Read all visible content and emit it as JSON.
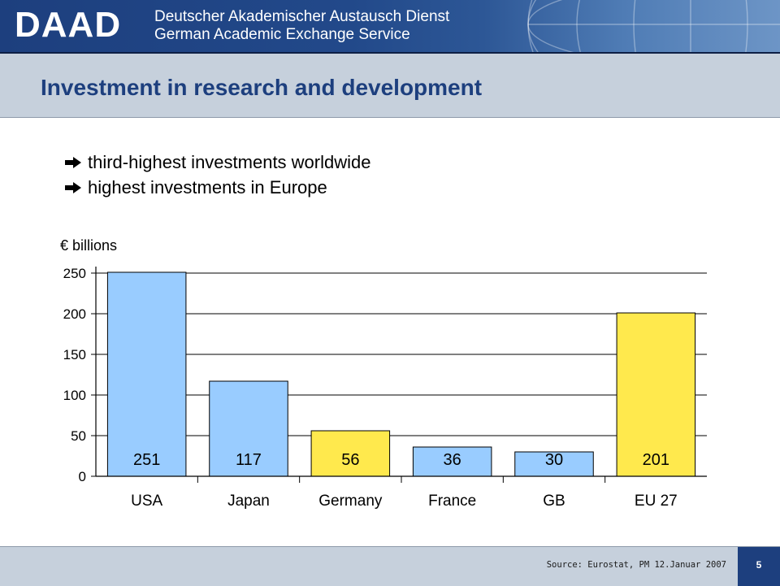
{
  "header": {
    "logo": "DAAD",
    "org_line1": "Deutscher Akademischer Austausch Dienst",
    "org_line2": "German Academic Exchange Service"
  },
  "slide": {
    "title": "Investment in research and development",
    "bullets": [
      "third-highest investments worldwide",
      "highest investments in Europe"
    ],
    "bullet_icon": "right-arrow-icon"
  },
  "chart_data": {
    "type": "bar",
    "ylabel": "€ billions",
    "categories": [
      "USA",
      "Japan",
      "Germany",
      "France",
      "GB",
      "EU 27"
    ],
    "values": [
      251,
      117,
      56,
      36,
      30,
      201
    ],
    "data_labels": [
      "251",
      "117",
      "56",
      "36",
      "30",
      "201"
    ],
    "bar_colors": [
      "#99ccff",
      "#99ccff",
      "#ffe94d",
      "#99ccff",
      "#99ccff",
      "#ffe94d"
    ],
    "ylim": [
      0,
      250
    ],
    "yticks": [
      0,
      50,
      100,
      150,
      200,
      250
    ],
    "grid": true
  },
  "footer": {
    "source": "Source: Eurostat, PM 12.Januar 2007",
    "page_number": "5"
  },
  "colors": {
    "brand_blue": "#1d3f7e",
    "band_gray": "#c6d0dc"
  }
}
